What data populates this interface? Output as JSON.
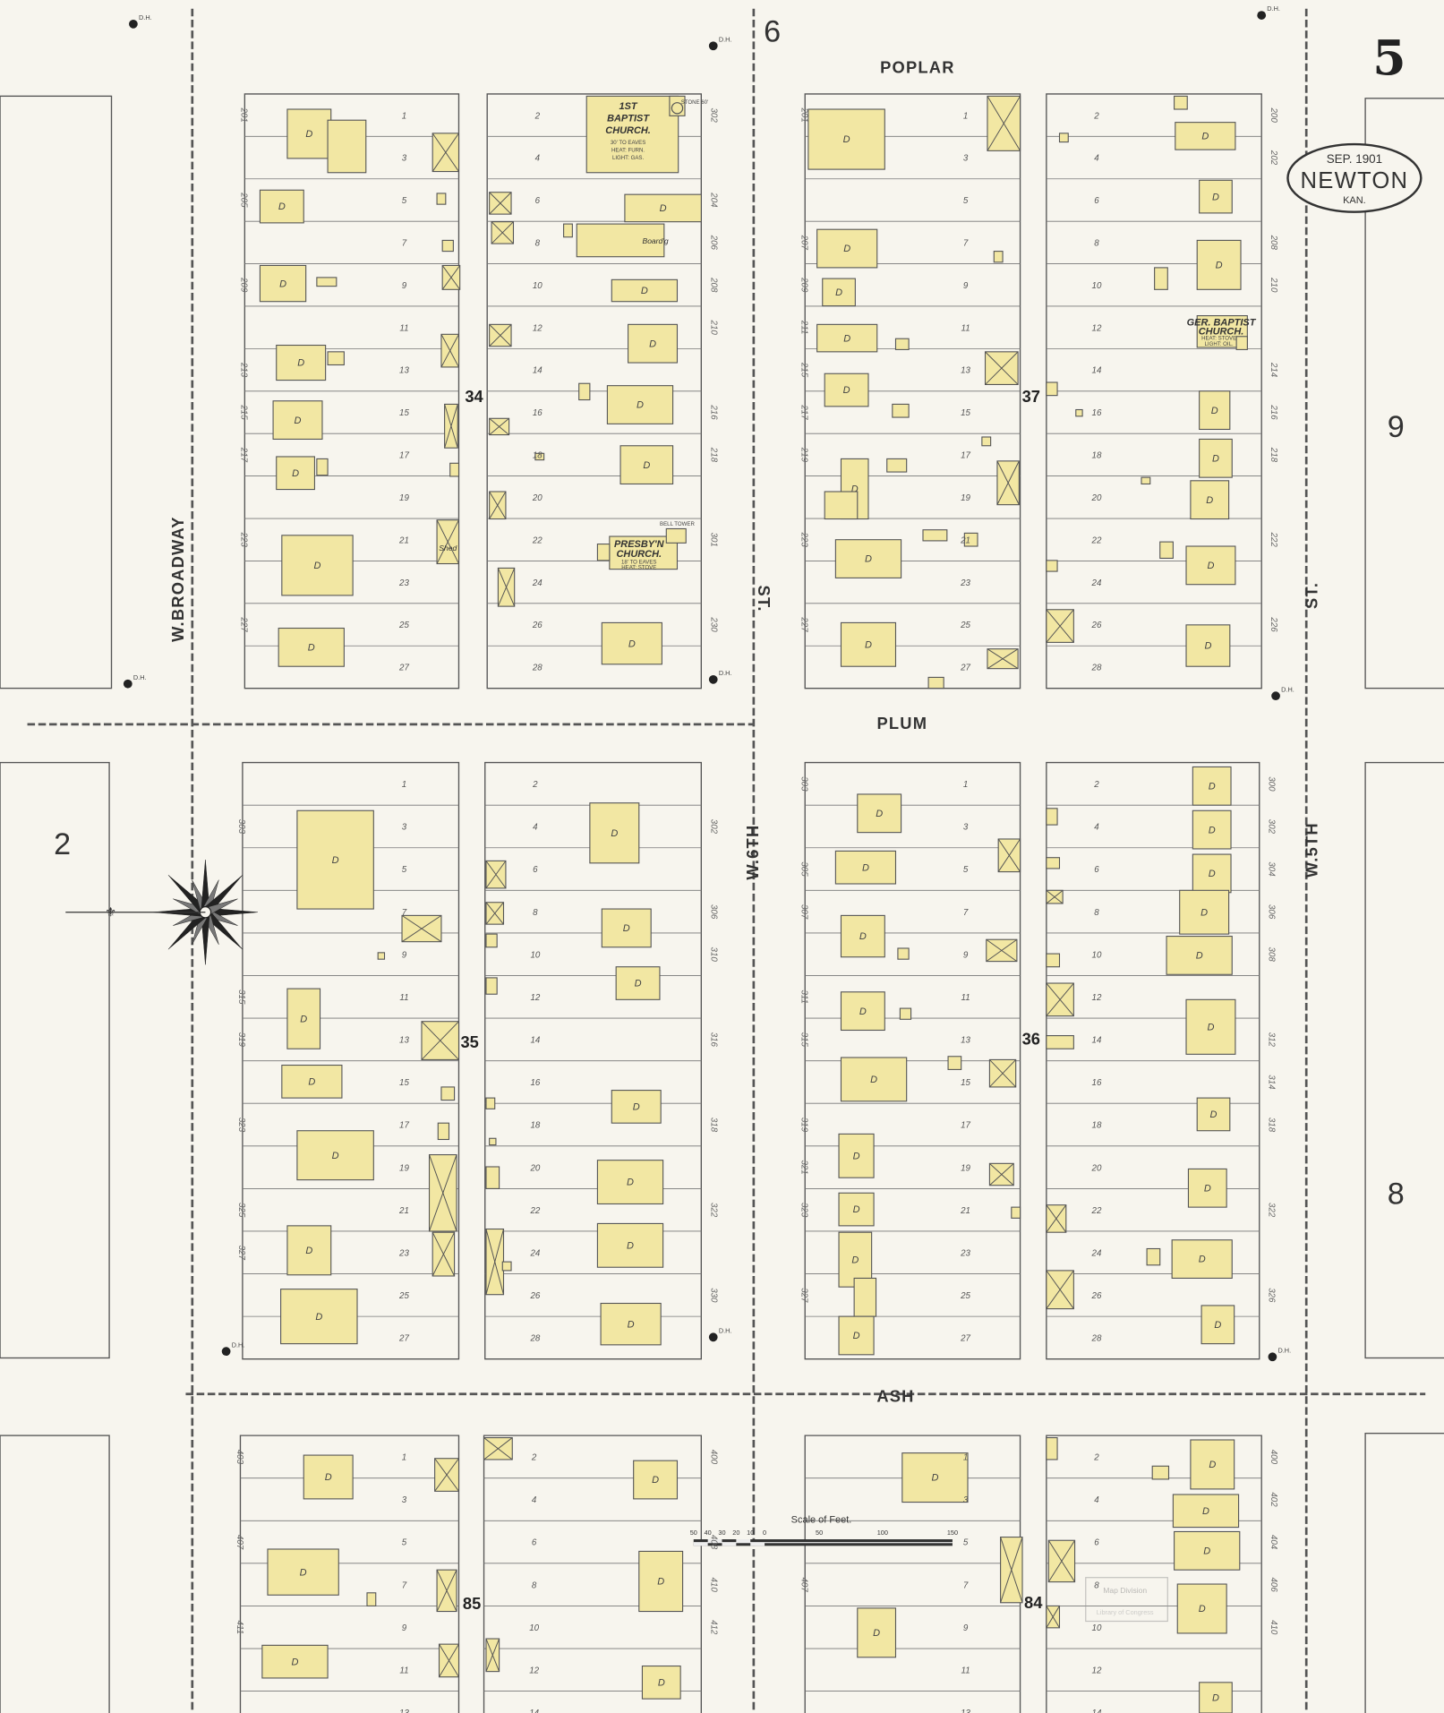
{
  "sheet_number": "5",
  "adjacent_sheets": {
    "north": "6",
    "west": "2",
    "east_upper": "9",
    "east_lower": "8"
  },
  "stamp": {
    "date": "SEP. 1901",
    "city": "NEWTON",
    "state": "KAN."
  },
  "streets": {
    "poplar": "POPLAR",
    "plum": "PLUM",
    "ash": "ASH",
    "broadway": "W.BROADWAY",
    "sixth_st": "ST.",
    "sixth_name": "W.6TH",
    "fifth_st": "ST.",
    "fifth_name": "W.5TH"
  },
  "blocks": {
    "b34": "34",
    "b37": "37",
    "b35": "35",
    "b36": "36",
    "b85": "85",
    "b84": "84"
  },
  "churches": {
    "first_baptist": {
      "name1": "1ST",
      "name2": "BAPTIST",
      "name3": "CHURCH.",
      "notes": [
        "30' TO EAVES",
        "HEAT: FURN.",
        "LIGHT: GAS."
      ],
      "tower": "STONE 60'"
    },
    "presbyterian": {
      "name1": "PRESBY'N",
      "name2": "CHURCH.",
      "notes": [
        "18' TO EAVES",
        "HEAT: STOVE",
        "LIGHT: GAS."
      ],
      "tower": "BELL TOWER"
    },
    "german_baptist": {
      "name1": "GER. BAPTIST",
      "name2": "CHURCH.",
      "notes": [
        "HEAT: STOVE",
        "LIGHT: OIL."
      ]
    }
  },
  "map_labels": {
    "dwelling": "D",
    "hydrant": "D.H.",
    "boarding": "Board'g",
    "stable": "Shed"
  },
  "scale": {
    "title": "Scale of Feet.",
    "ticks": [
      "50",
      "40",
      "30",
      "20",
      "10",
      "0",
      "50",
      "100",
      "150"
    ]
  },
  "stamp_library": {
    "line1": "Map Division",
    "line2": "Library of Congress"
  },
  "lot_numbers": {
    "odd": [
      "1",
      "3",
      "5",
      "7",
      "9",
      "11",
      "13",
      "15",
      "17",
      "19",
      "21",
      "23",
      "25",
      "27"
    ],
    "even": [
      "2",
      "4",
      "6",
      "8",
      "10",
      "12",
      "14",
      "16",
      "18",
      "20",
      "22",
      "24",
      "26",
      "28"
    ]
  },
  "house_numbers": {
    "b34_west": [
      {
        "lot": 1,
        "no": "201"
      },
      {
        "lot": 3,
        "no": "205"
      },
      {
        "lot": 5,
        "no": "209"
      },
      {
        "lot": 7,
        "no": "213"
      },
      {
        "lot": 8,
        "no": "215"
      },
      {
        "lot": 9,
        "no": "217"
      },
      {
        "lot": 11,
        "no": "223"
      },
      {
        "lot": 13,
        "no": "227"
      }
    ],
    "b34_east": [
      {
        "lot": 1,
        "no": "302"
      },
      {
        "lot": 3,
        "no": "204"
      },
      {
        "lot": 4,
        "no": "206"
      },
      {
        "lot": 5,
        "no": "208"
      },
      {
        "lot": 6,
        "no": "210"
      },
      {
        "lot": 8,
        "no": "216"
      },
      {
        "lot": 9,
        "no": "218"
      },
      {
        "lot": 11,
        "no": "301"
      },
      {
        "lot": 13,
        "no": "230"
      }
    ],
    "b37_west": [
      {
        "lot": 1,
        "no": "201"
      },
      {
        "lot": 4,
        "no": "207"
      },
      {
        "lot": 5,
        "no": "209"
      },
      {
        "lot": 6,
        "no": "211"
      },
      {
        "lot": 7,
        "no": "215"
      },
      {
        "lot": 8,
        "no": "217"
      },
      {
        "lot": 9,
        "no": "219"
      },
      {
        "lot": 11,
        "no": "223"
      },
      {
        "lot": 13,
        "no": "227"
      }
    ],
    "b37_east": [
      {
        "lot": 1,
        "no": "200"
      },
      {
        "lot": 2,
        "no": "202"
      },
      {
        "lot": 4,
        "no": "208"
      },
      {
        "lot": 5,
        "no": "210"
      },
      {
        "lot": 7,
        "no": "214"
      },
      {
        "lot": 8,
        "no": "216"
      },
      {
        "lot": 9,
        "no": "218"
      },
      {
        "lot": 11,
        "no": "222"
      },
      {
        "lot": 13,
        "no": "226"
      }
    ],
    "b35_west": [
      {
        "lot": 2,
        "no": "303"
      },
      {
        "lot": 6,
        "no": "315"
      },
      {
        "lot": 7,
        "no": "319"
      },
      {
        "lot": 9,
        "no": "323"
      },
      {
        "lot": 11,
        "no": "325"
      },
      {
        "lot": 12,
        "no": "327"
      }
    ],
    "b35_east": [
      {
        "lot": 2,
        "no": "302"
      },
      {
        "lot": 4,
        "no": "306"
      },
      {
        "lot": 5,
        "no": "310"
      },
      {
        "lot": 7,
        "no": "316"
      },
      {
        "lot": 9,
        "no": "318"
      },
      {
        "lot": 11,
        "no": "322"
      },
      {
        "lot": 13,
        "no": "330"
      }
    ],
    "b36_west": [
      {
        "lot": 1,
        "no": "303"
      },
      {
        "lot": 3,
        "no": "305"
      },
      {
        "lot": 4,
        "no": "307"
      },
      {
        "lot": 6,
        "no": "311"
      },
      {
        "lot": 7,
        "no": "315"
      },
      {
        "lot": 9,
        "no": "319"
      },
      {
        "lot": 10,
        "no": "321"
      },
      {
        "lot": 11,
        "no": "323"
      },
      {
        "lot": 13,
        "no": "327"
      }
    ],
    "b36_east": [
      {
        "lot": 1,
        "no": "300"
      },
      {
        "lot": 2,
        "no": "302"
      },
      {
        "lot": 3,
        "no": "304"
      },
      {
        "lot": 4,
        "no": "306"
      },
      {
        "lot": 5,
        "no": "308"
      },
      {
        "lot": 7,
        "no": "312"
      },
      {
        "lot": 8,
        "no": "314"
      },
      {
        "lot": 9,
        "no": "318"
      },
      {
        "lot": 11,
        "no": "322"
      },
      {
        "lot": 13,
        "no": "326"
      }
    ],
    "b85_west": [
      {
        "lot": 1,
        "no": "403"
      },
      {
        "lot": 3,
        "no": "407"
      },
      {
        "lot": 5,
        "no": "411"
      }
    ],
    "b85_east": [
      {
        "lot": 1,
        "no": "400"
      },
      {
        "lot": 3,
        "no": "408"
      },
      {
        "lot": 4,
        "no": "410"
      },
      {
        "lot": 5,
        "no": "412"
      }
    ],
    "b84_west": [
      {
        "lot": 4,
        "no": "407"
      }
    ],
    "b84_east": [
      {
        "lot": 1,
        "no": "400"
      },
      {
        "lot": 2,
        "no": "402"
      },
      {
        "lot": 3,
        "no": "404"
      },
      {
        "lot": 4,
        "no": "406"
      },
      {
        "lot": 5,
        "no": "410"
      }
    ]
  },
  "colors": {
    "building": "#f2e7a3",
    "paper": "#f7f5ee",
    "ink": "#555555"
  }
}
